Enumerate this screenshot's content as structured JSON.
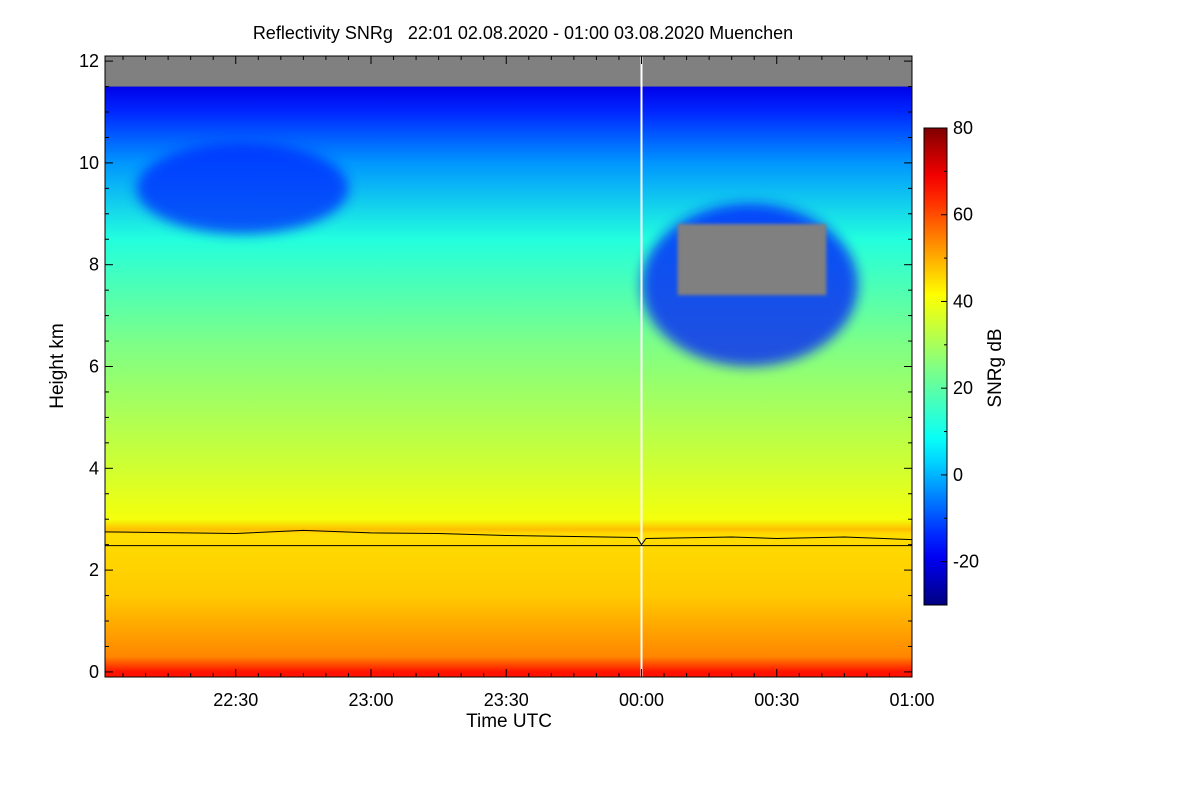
{
  "chart_data": {
    "type": "heatmap",
    "title": "Reflectivity SNRg   22:01 02.08.2020 - 01:00 03.08.2020 Muenchen",
    "xlabel": "Time UTC",
    "ylabel": "Height km",
    "colorbar_label": "SNRg dB",
    "xlim_minutes": [
      -119,
      60
    ],
    "ylim": [
      -0.1,
      12.1
    ],
    "clim": [
      -30,
      80
    ],
    "x_ticks": [
      {
        "minute": -90,
        "label": "22:30"
      },
      {
        "minute": -60,
        "label": "23:00"
      },
      {
        "minute": -30,
        "label": "23:30"
      },
      {
        "minute": 0,
        "label": "00:00"
      },
      {
        "minute": 30,
        "label": "00:30"
      },
      {
        "minute": 60,
        "label": "01:00"
      }
    ],
    "y_ticks": [
      {
        "value": 0,
        "label": "0"
      },
      {
        "value": 2,
        "label": "2"
      },
      {
        "value": 4,
        "label": "4"
      },
      {
        "value": 6,
        "label": "6"
      },
      {
        "value": 8,
        "label": "8"
      },
      {
        "value": 10,
        "label": "10"
      },
      {
        "value": 12,
        "label": "12"
      }
    ],
    "colorbar_ticks": [
      {
        "value": -20,
        "label": "-20"
      },
      {
        "value": 0,
        "label": "0"
      },
      {
        "value": 20,
        "label": "20"
      },
      {
        "value": 40,
        "label": "40"
      },
      {
        "value": 60,
        "label": "60"
      },
      {
        "value": 80,
        "label": "80"
      }
    ],
    "profile_snr_db": [
      {
        "height": 0.0,
        "snr": 66
      },
      {
        "height": 0.3,
        "snr": 54
      },
      {
        "height": 1.5,
        "snr": 47
      },
      {
        "height": 2.7,
        "snr": 45
      },
      {
        "height": 2.8,
        "snr": 48
      },
      {
        "height": 3.0,
        "snr": 40
      },
      {
        "height": 4.5,
        "snr": 33
      },
      {
        "height": 6.5,
        "snr": 24
      },
      {
        "height": 8.5,
        "snr": 12
      },
      {
        "height": 10.0,
        "snr": -3
      },
      {
        "height": 11.0,
        "snr": -14
      },
      {
        "height": 11.5,
        "snr": -20
      }
    ],
    "no_signal_color": "#808080",
    "no_signal_top_km": 11.5,
    "no_signal_patch": {
      "minute_start": 8,
      "minute_end": 41,
      "height_low": 7.4,
      "height_high": 8.8
    },
    "weak_echo_regions": [
      {
        "minute_start": -112,
        "minute_end": -65,
        "height_low": 8.6,
        "height_high": 10.4,
        "snr": -14
      },
      {
        "minute_start": 0,
        "minute_end": 48,
        "height_low": 6.0,
        "height_high": 9.2,
        "snr": -16
      }
    ],
    "melting_layer_line": [
      {
        "minute": -119,
        "height": 2.75
      },
      {
        "minute": -90,
        "height": 2.72
      },
      {
        "minute": -75,
        "height": 2.78
      },
      {
        "minute": -60,
        "height": 2.73
      },
      {
        "minute": -45,
        "height": 2.72
      },
      {
        "minute": -30,
        "height": 2.68
      },
      {
        "minute": -15,
        "height": 2.66
      },
      {
        "minute": -1,
        "height": 2.64
      },
      {
        "minute": 0,
        "height": 2.5
      },
      {
        "minute": 1,
        "height": 2.62
      },
      {
        "minute": 20,
        "height": 2.65
      },
      {
        "minute": 30,
        "height": 2.62
      },
      {
        "minute": 45,
        "height": 2.65
      },
      {
        "minute": 60,
        "height": 2.6
      }
    ],
    "reference_height_km": 2.48,
    "gap_minute": 0
  }
}
